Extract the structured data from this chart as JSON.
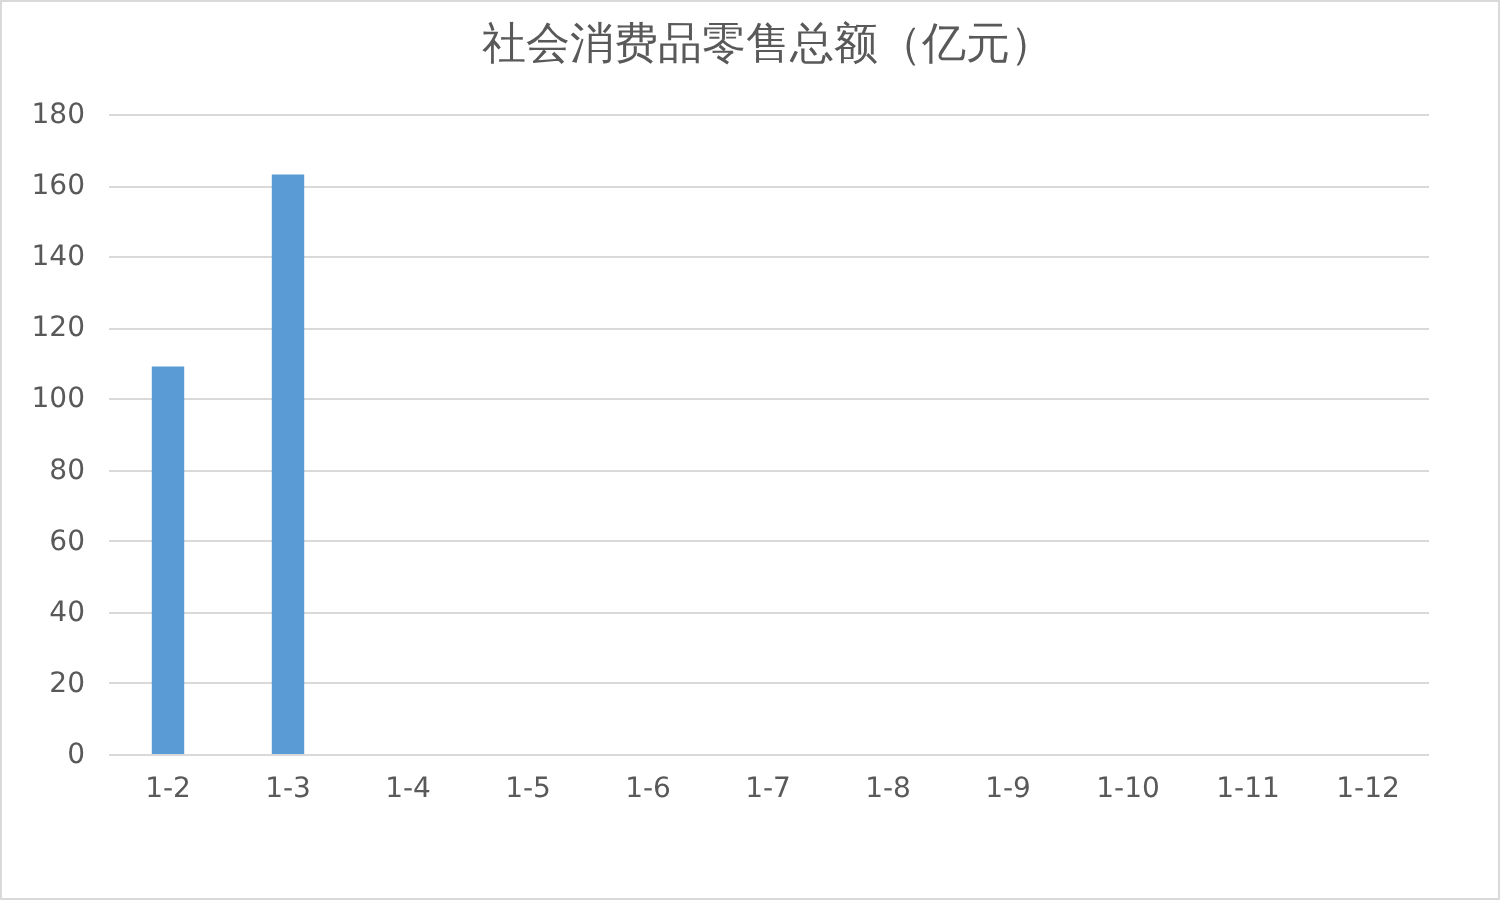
{
  "chart_data": {
    "type": "bar",
    "title": "社会消费品零售总额（亿元）",
    "categories": [
      "1-2",
      "1-3",
      "1-4",
      "1-5",
      "1-6",
      "1-7",
      "1-8",
      "1-9",
      "1-10",
      "1-11",
      "1-12"
    ],
    "values": [
      109,
      163,
      null,
      null,
      null,
      null,
      null,
      null,
      null,
      null,
      null
    ],
    "color": "#5b9bd5",
    "ylim": [
      0,
      180
    ],
    "yticks": [
      0,
      20,
      40,
      60,
      80,
      100,
      120,
      140,
      160,
      180
    ],
    "grid": "y"
  }
}
